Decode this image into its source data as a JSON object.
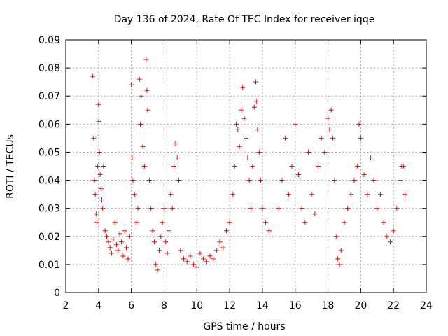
{
  "chart_data": {
    "type": "scatter",
    "title": "Day 136 of 2024, Rate Of TEC Index for receiver iqqe",
    "xlabel": "GPS time / hours",
    "ylabel": "ROTI / TECUs",
    "xlim": [
      2,
      24
    ],
    "ylim": [
      0,
      0.09
    ],
    "x_ticks": [
      2,
      4,
      6,
      8,
      10,
      12,
      14,
      16,
      18,
      20,
      22,
      24
    ],
    "y_ticks": [
      0,
      0.01,
      0.02,
      0.03,
      0.04,
      0.05,
      0.06,
      0.07,
      0.08,
      0.09
    ],
    "y_tick_labels": [
      "0",
      "0.01",
      "0.02",
      "0.03",
      "0.04",
      "0.05",
      "0.06",
      "0.07",
      "0.08",
      "0.09"
    ],
    "grid": true,
    "marker": "+",
    "marker_color": "#ff0000",
    "series": [
      {
        "name": "ROTI",
        "points": [
          [
            3.65,
            0.077
          ],
          [
            3.7,
            0.055
          ],
          [
            3.75,
            0.04
          ],
          [
            3.8,
            0.035
          ],
          [
            3.85,
            0.028
          ],
          [
            3.9,
            0.025
          ],
          [
            3.95,
            0.045
          ],
          [
            4.0,
            0.067
          ],
          [
            4.02,
            0.061
          ],
          [
            4.05,
            0.05
          ],
          [
            4.1,
            0.042
          ],
          [
            4.15,
            0.037
          ],
          [
            4.2,
            0.033
          ],
          [
            4.25,
            0.03
          ],
          [
            4.3,
            0.045
          ],
          [
            4.4,
            0.022
          ],
          [
            4.5,
            0.02
          ],
          [
            4.6,
            0.018
          ],
          [
            4.7,
            0.016
          ],
          [
            4.8,
            0.014
          ],
          [
            4.9,
            0.019
          ],
          [
            5.0,
            0.025
          ],
          [
            5.1,
            0.017
          ],
          [
            5.2,
            0.015
          ],
          [
            5.3,
            0.021
          ],
          [
            5.4,
            0.018
          ],
          [
            5.5,
            0.013
          ],
          [
            5.6,
            0.022
          ],
          [
            5.7,
            0.016
          ],
          [
            5.8,
            0.012
          ],
          [
            5.9,
            0.02
          ],
          [
            6.0,
            0.074
          ],
          [
            6.05,
            0.048
          ],
          [
            6.1,
            0.04
          ],
          [
            6.2,
            0.035
          ],
          [
            6.3,
            0.025
          ],
          [
            6.4,
            0.03
          ],
          [
            6.5,
            0.076
          ],
          [
            6.55,
            0.06
          ],
          [
            6.6,
            0.07
          ],
          [
            6.7,
            0.052
          ],
          [
            6.8,
            0.045
          ],
          [
            6.9,
            0.083
          ],
          [
            6.95,
            0.072
          ],
          [
            7.0,
            0.065
          ],
          [
            7.1,
            0.04
          ],
          [
            7.2,
            0.03
          ],
          [
            7.3,
            0.022
          ],
          [
            7.4,
            0.018
          ],
          [
            7.5,
            0.01
          ],
          [
            7.6,
            0.008
          ],
          [
            7.7,
            0.015
          ],
          [
            7.8,
            0.02
          ],
          [
            7.9,
            0.025
          ],
          [
            8.0,
            0.03
          ],
          [
            8.1,
            0.018
          ],
          [
            8.2,
            0.014
          ],
          [
            8.3,
            0.022
          ],
          [
            8.4,
            0.035
          ],
          [
            8.5,
            0.03
          ],
          [
            8.6,
            0.045
          ],
          [
            8.7,
            0.053
          ],
          [
            8.8,
            0.048
          ],
          [
            8.9,
            0.04
          ],
          [
            9.0,
            0.015
          ],
          [
            9.2,
            0.012
          ],
          [
            9.4,
            0.011
          ],
          [
            9.6,
            0.013
          ],
          [
            9.8,
            0.01
          ],
          [
            10.0,
            0.009
          ],
          [
            10.2,
            0.014
          ],
          [
            10.4,
            0.012
          ],
          [
            10.6,
            0.011
          ],
          [
            10.8,
            0.013
          ],
          [
            11.0,
            0.012
          ],
          [
            11.2,
            0.015
          ],
          [
            11.4,
            0.018
          ],
          [
            11.6,
            0.016
          ],
          [
            11.8,
            0.022
          ],
          [
            12.0,
            0.025
          ],
          [
            12.2,
            0.035
          ],
          [
            12.3,
            0.045
          ],
          [
            12.4,
            0.06
          ],
          [
            12.5,
            0.058
          ],
          [
            12.6,
            0.052
          ],
          [
            12.7,
            0.065
          ],
          [
            12.8,
            0.073
          ],
          [
            12.9,
            0.062
          ],
          [
            13.0,
            0.055
          ],
          [
            13.1,
            0.048
          ],
          [
            13.2,
            0.04
          ],
          [
            13.3,
            0.03
          ],
          [
            13.4,
            0.045
          ],
          [
            13.5,
            0.066
          ],
          [
            13.6,
            0.075
          ],
          [
            13.65,
            0.068
          ],
          [
            13.7,
            0.058
          ],
          [
            13.8,
            0.05
          ],
          [
            13.9,
            0.04
          ],
          [
            14.0,
            0.03
          ],
          [
            14.2,
            0.025
          ],
          [
            14.4,
            0.022
          ],
          [
            15.0,
            0.03
          ],
          [
            15.2,
            0.04
          ],
          [
            15.4,
            0.055
          ],
          [
            15.6,
            0.035
          ],
          [
            15.8,
            0.045
          ],
          [
            16.0,
            0.06
          ],
          [
            16.2,
            0.042
          ],
          [
            16.4,
            0.03
          ],
          [
            16.6,
            0.025
          ],
          [
            16.8,
            0.05
          ],
          [
            17.0,
            0.035
          ],
          [
            17.2,
            0.028
          ],
          [
            17.4,
            0.045
          ],
          [
            17.6,
            0.055
          ],
          [
            17.8,
            0.05
          ],
          [
            18.0,
            0.062
          ],
          [
            18.1,
            0.058
          ],
          [
            18.2,
            0.065
          ],
          [
            18.3,
            0.055
          ],
          [
            18.4,
            0.04
          ],
          [
            18.5,
            0.02
          ],
          [
            18.6,
            0.012
          ],
          [
            18.7,
            0.01
          ],
          [
            18.8,
            0.015
          ],
          [
            19.0,
            0.025
          ],
          [
            19.2,
            0.03
          ],
          [
            19.4,
            0.035
          ],
          [
            19.6,
            0.04
          ],
          [
            19.8,
            0.045
          ],
          [
            19.9,
            0.06
          ],
          [
            20.0,
            0.055
          ],
          [
            20.2,
            0.042
          ],
          [
            20.4,
            0.035
          ],
          [
            20.6,
            0.048
          ],
          [
            20.8,
            0.04
          ],
          [
            21.0,
            0.03
          ],
          [
            21.2,
            0.035
          ],
          [
            21.4,
            0.025
          ],
          [
            21.6,
            0.02
          ],
          [
            21.8,
            0.018
          ],
          [
            22.0,
            0.022
          ],
          [
            22.2,
            0.03
          ],
          [
            22.4,
            0.04
          ],
          [
            22.5,
            0.045
          ],
          [
            22.6,
            0.045
          ],
          [
            22.7,
            0.035
          ]
        ]
      }
    ]
  }
}
